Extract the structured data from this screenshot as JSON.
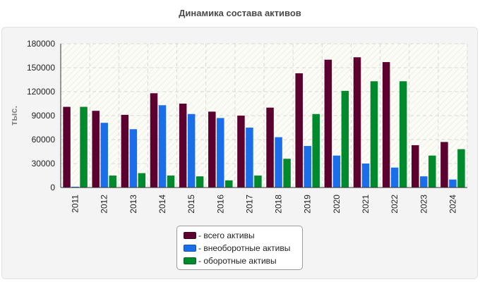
{
  "chart_data": {
    "type": "bar",
    "title": "Динамика состава активов",
    "ylabel": "тыс.",
    "xlabel": "",
    "ylim": [
      0,
      180000
    ],
    "yticks": [
      0,
      30000,
      60000,
      90000,
      120000,
      150000,
      180000
    ],
    "grid": true,
    "legend_position": "bottom-center",
    "categories": [
      "2011",
      "2012",
      "2013",
      "2014",
      "2015",
      "2016",
      "2017",
      "2018",
      "2019",
      "2020",
      "2021",
      "2022",
      "2023",
      "2024"
    ],
    "series": [
      {
        "name": "- всего активы",
        "color": "#5c0030",
        "values": [
          101000,
          96000,
          91000,
          118000,
          105000,
          95000,
          90000,
          100000,
          143000,
          160000,
          163000,
          157000,
          53000,
          57000
        ]
      },
      {
        "name": "- внеоборотные активы",
        "color": "#1a6eea",
        "values": [
          1000,
          81000,
          73000,
          103000,
          92000,
          87000,
          75000,
          63000,
          52000,
          40000,
          30000,
          25000,
          14000,
          10000
        ]
      },
      {
        "name": "- оборотные активы",
        "color": "#008a2e",
        "values": [
          101000,
          15000,
          18000,
          15000,
          14000,
          9000,
          15000,
          36000,
          92000,
          121000,
          133000,
          133000,
          40000,
          48000
        ]
      }
    ]
  }
}
